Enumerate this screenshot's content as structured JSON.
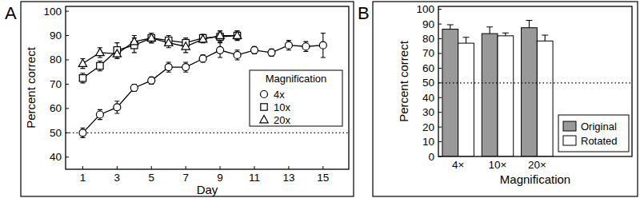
{
  "chart_data": [
    {
      "type": "line",
      "title": "A",
      "x_label": "Day",
      "y_label": "Percent correct",
      "x": [
        1,
        2,
        3,
        4,
        5,
        6,
        7,
        8,
        9,
        10,
        11,
        12,
        13,
        14,
        15
      ],
      "xlim": [
        0,
        16.5
      ],
      "xticks": [
        1,
        3,
        5,
        7,
        9,
        11,
        13,
        15
      ],
      "ylim": [
        35,
        102
      ],
      "yticks": [
        40,
        50,
        60,
        70,
        80,
        90,
        100
      ],
      "grid": false,
      "legend": "right",
      "legend_title": "Magnification",
      "chance_level": 50,
      "series": [
        {
          "name": "4x",
          "color": "#000000",
          "marker": "circle",
          "line_style": "solid",
          "values": [
            50,
            57.5,
            60.5,
            68.5,
            71.5,
            77,
            77,
            80.5,
            84,
            82,
            84,
            83,
            86,
            85.5,
            86
          ],
          "errors": [
            2,
            2,
            2.5,
            1.5,
            1.5,
            2,
            2,
            1.5,
            3,
            2,
            1.5,
            1.5,
            2,
            2,
            5
          ]
        },
        {
          "name": "10x",
          "color": "#000000",
          "marker": "square",
          "line_style": "solid",
          "values": [
            72.5,
            77.5,
            84,
            86,
            89,
            88,
            87,
            89,
            89.5,
            90,
            null,
            null,
            null,
            null,
            null
          ],
          "errors": [
            2,
            2,
            3,
            3,
            2,
            2,
            2,
            1.5,
            2,
            2,
            null,
            null,
            null,
            null,
            null
          ]
        },
        {
          "name": "20x",
          "color": "#000000",
          "marker": "triangle",
          "line_style": "solid",
          "values": [
            78.5,
            83,
            82.5,
            87.5,
            89,
            87,
            85.5,
            88.5,
            90,
            90,
            null,
            null,
            null,
            null,
            null
          ],
          "errors": [
            2,
            2,
            2,
            2.5,
            2,
            2,
            2.5,
            1.5,
            2,
            1.5,
            null,
            null,
            null,
            null,
            null
          ]
        }
      ]
    },
    {
      "type": "bar",
      "title": "B",
      "x_label": "Magnification",
      "y_label": "Percent correct",
      "categories": [
        "4×",
        "10×",
        "20×"
      ],
      "ylim": [
        0,
        102
      ],
      "yticks": [
        0,
        10,
        20,
        30,
        40,
        50,
        60,
        70,
        80,
        90,
        100
      ],
      "grid": false,
      "legend": "lower right",
      "chance_level": 50,
      "series": [
        {
          "name": "Original",
          "color": "#999999",
          "values": [
            86.5,
            83.5,
            87.5
          ],
          "errors": [
            3,
            4.5,
            5
          ]
        },
        {
          "name": "Rotated",
          "color": "#ffffff",
          "values": [
            77,
            82,
            78.5
          ],
          "errors": [
            4,
            2,
            4
          ]
        }
      ]
    }
  ]
}
